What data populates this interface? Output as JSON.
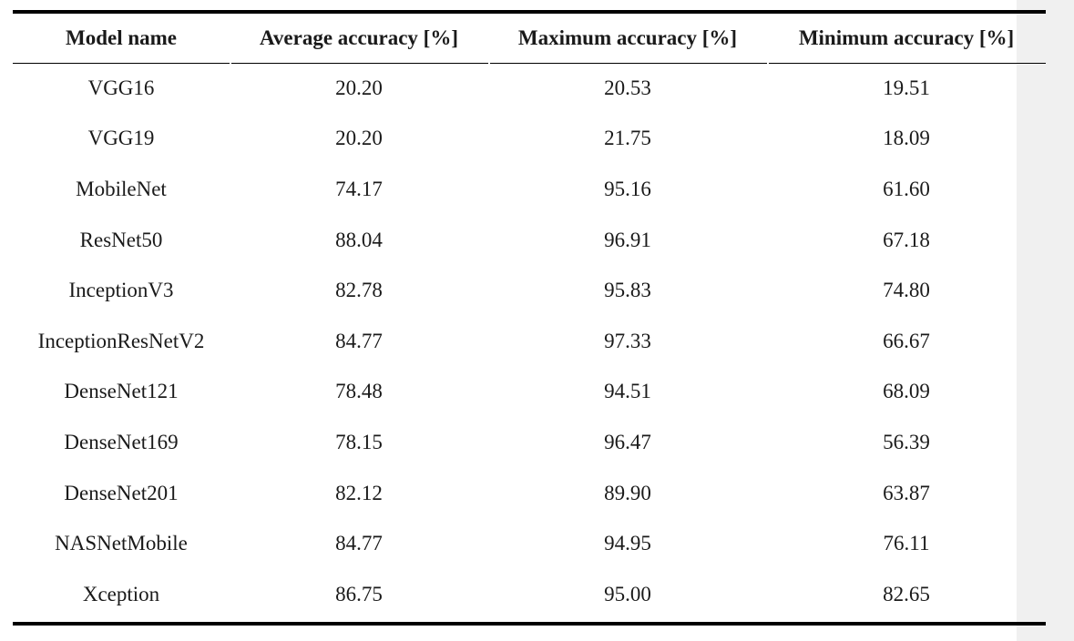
{
  "table": {
    "headers": [
      "Model name",
      "Average accuracy [%]",
      "Maximum accuracy [%]",
      "Minimum accuracy [%]"
    ],
    "rows": [
      [
        "VGG16",
        "20.20",
        "20.53",
        "19.51"
      ],
      [
        "VGG19",
        "20.20",
        "21.75",
        "18.09"
      ],
      [
        "MobileNet",
        "74.17",
        "95.16",
        "61.60"
      ],
      [
        "ResNet50",
        "88.04",
        "96.91",
        "67.18"
      ],
      [
        "InceptionV3",
        "82.78",
        "95.83",
        "74.80"
      ],
      [
        "InceptionResNetV2",
        "84.77",
        "97.33",
        "66.67"
      ],
      [
        "DenseNet121",
        "78.48",
        "94.51",
        "68.09"
      ],
      [
        "DenseNet169",
        "78.15",
        "96.47",
        "56.39"
      ],
      [
        "DenseNet201",
        "82.12",
        "89.90",
        "63.87"
      ],
      [
        "NASNetMobile",
        "84.77",
        "94.95",
        "76.11"
      ],
      [
        "Xception",
        "86.75",
        "95.00",
        "82.65"
      ]
    ]
  }
}
